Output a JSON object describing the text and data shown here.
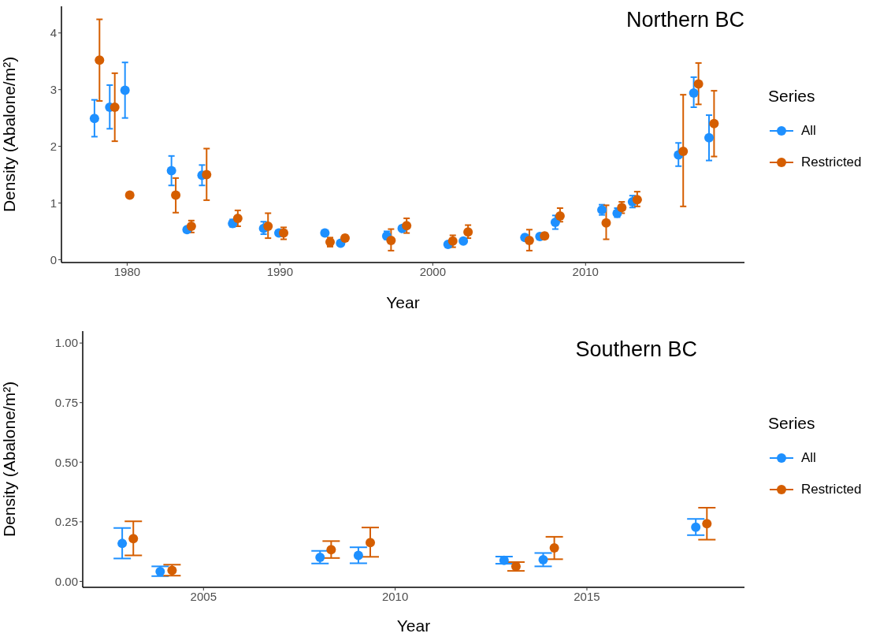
{
  "chart_data": [
    {
      "type": "scatter",
      "title": "Northern BC",
      "xlabel": "Year",
      "ylabel": "Density (Abalone/m²)",
      "legend_title": "Series",
      "legend": "right",
      "marker": "circle",
      "grid": false,
      "xlim": [
        1975.7,
        2020.4
      ],
      "xticks": [
        1980,
        1990,
        2000,
        2010
      ],
      "ylim": [
        -0.05,
        4.47
      ],
      "yticks": [
        0,
        1,
        2,
        3,
        4
      ],
      "series": [
        {
          "name": "All",
          "color": "#1e90ff",
          "x": [
            1977.86,
            1978.86,
            1979.86,
            1982.9,
            1983.92,
            1984.9,
            1986.9,
            1988.93,
            1989.93,
            1992.94,
            1993.97,
            1996.99,
            1998.0,
            2001.0,
            2002.0,
            2006.03,
            2007.01,
            2008.02,
            2011.07,
            2012.07,
            2013.07,
            2016.08,
            2017.08,
            2018.08
          ],
          "values": [
            2.49,
            2.69,
            2.99,
            1.57,
            0.53,
            1.49,
            0.64,
            0.55,
            0.47,
            0.47,
            0.29,
            0.42,
            0.55,
            0.27,
            0.33,
            0.39,
            0.41,
            0.66,
            0.88,
            0.82,
            1.02,
            1.85,
            2.94,
            2.15
          ],
          "errors": [
            [
              2.17,
              2.82
            ],
            [
              2.31,
              3.08
            ],
            [
              2.5,
              3.48
            ],
            [
              1.31,
              1.83
            ],
            [
              0.48,
              0.57
            ],
            [
              1.31,
              1.67
            ],
            [
              0.58,
              0.71
            ],
            [
              0.45,
              0.67
            ],
            [
              0.44,
              0.5
            ],
            [
              0.43,
              0.51
            ],
            [
              0.27,
              0.31
            ],
            [
              0.36,
              0.5
            ],
            [
              0.51,
              0.6
            ],
            [
              0.24,
              0.3
            ],
            [
              0.3,
              0.36
            ],
            [
              0.35,
              0.44
            ],
            [
              0.38,
              0.44
            ],
            [
              0.54,
              0.78
            ],
            [
              0.79,
              0.97
            ],
            [
              0.75,
              0.91
            ],
            [
              0.92,
              1.13
            ],
            [
              1.65,
              2.06
            ],
            [
              2.69,
              3.22
            ],
            [
              1.75,
              2.55
            ]
          ]
        },
        {
          "name": "Restricted",
          "color": "#d55e00",
          "x": [
            1978.19,
            1979.19,
            1980.17,
            1983.18,
            1984.2,
            1985.2,
            1987.24,
            1989.22,
            1990.24,
            1993.28,
            1994.26,
            1997.27,
            1998.29,
            2001.31,
            2002.31,
            2006.32,
            2007.32,
            2008.33,
            2011.35,
            2012.37,
            2013.38,
            2016.39,
            2017.39,
            2018.41
          ],
          "values": [
            3.52,
            2.69,
            1.14,
            1.14,
            0.59,
            1.5,
            0.73,
            0.59,
            0.47,
            0.31,
            0.38,
            0.34,
            0.6,
            0.33,
            0.49,
            0.34,
            0.42,
            0.77,
            0.65,
            0.92,
            1.06,
            1.91,
            3.1,
            2.4
          ],
          "errors": [
            [
              2.8,
              4.24
            ],
            [
              2.09,
              3.29
            ],
            null,
            [
              0.83,
              1.44
            ],
            [
              0.48,
              0.69
            ],
            [
              1.05,
              1.96
            ],
            [
              0.59,
              0.87
            ],
            [
              0.38,
              0.82
            ],
            [
              0.36,
              0.57
            ],
            [
              0.23,
              0.39
            ],
            [
              0.33,
              0.43
            ],
            [
              0.16,
              0.54
            ],
            [
              0.47,
              0.73
            ],
            [
              0.22,
              0.43
            ],
            [
              0.38,
              0.61
            ],
            [
              0.16,
              0.53
            ],
            [
              0.37,
              0.47
            ],
            [
              0.67,
              0.91
            ],
            [
              0.36,
              0.96
            ],
            [
              0.82,
              1.02
            ],
            [
              0.94,
              1.2
            ],
            [
              0.94,
              2.91
            ],
            [
              2.74,
              3.47
            ],
            [
              1.82,
              2.98
            ]
          ]
        }
      ]
    },
    {
      "type": "scatter",
      "title": "Southern BC",
      "xlabel": "Year",
      "ylabel": "Density (Abalone/m²)",
      "legend_title": "Series",
      "legend": "right",
      "marker": "circle",
      "grid": false,
      "xlim": [
        2001.85,
        2019.11
      ],
      "xticks": [
        2005,
        2010,
        2015
      ],
      "ylim": [
        -0.025,
        1.05
      ],
      "yticks": [
        {
          "value": 0,
          "label": "0.00"
        },
        {
          "value": 0.25,
          "label": "0.25"
        },
        {
          "value": 0.5,
          "label": "0.50"
        },
        {
          "value": 0.75,
          "label": "0.75"
        },
        {
          "value": 1,
          "label": "1.00"
        }
      ],
      "series": [
        {
          "name": "All",
          "color": "#1e90ff",
          "x": [
            2002.88,
            2003.87,
            2008.04,
            2009.04,
            2012.84,
            2013.86,
            2017.84
          ],
          "values": [
            0.159,
            0.041,
            0.101,
            0.109,
            0.088,
            0.091,
            0.227
          ],
          "errors": [
            [
              0.096,
              0.224
            ],
            [
              0.022,
              0.063
            ],
            [
              0.075,
              0.128
            ],
            [
              0.076,
              0.143
            ],
            [
              0.074,
              0.104
            ],
            [
              0.063,
              0.119
            ],
            [
              0.194,
              0.262
            ]
          ]
        },
        {
          "name": "Restricted",
          "color": "#d55e00",
          "x": [
            2003.17,
            2004.18,
            2008.33,
            2009.35,
            2013.15,
            2014.15,
            2018.13
          ],
          "values": [
            0.179,
            0.046,
            0.133,
            0.163,
            0.063,
            0.14,
            0.242
          ],
          "errors": [
            [
              0.109,
              0.252
            ],
            [
              0.024,
              0.07
            ],
            [
              0.098,
              0.169
            ],
            [
              0.103,
              0.226
            ],
            [
              0.044,
              0.081
            ],
            [
              0.093,
              0.187
            ],
            [
              0.175,
              0.309
            ]
          ]
        }
      ]
    }
  ]
}
